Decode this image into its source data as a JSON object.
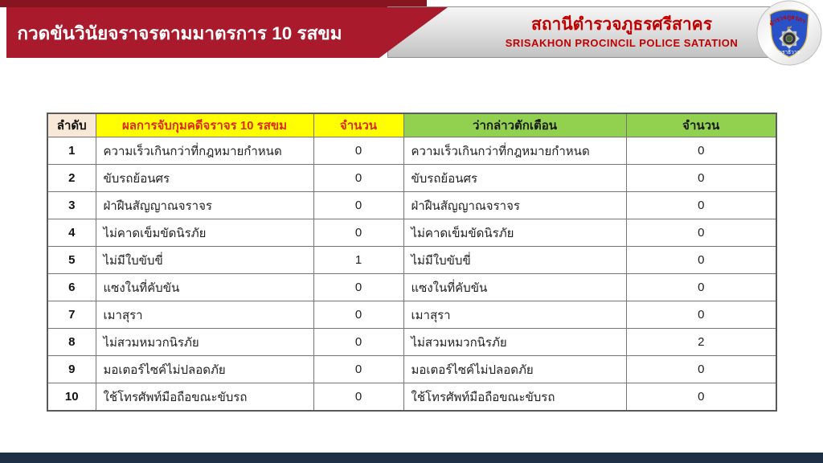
{
  "header": {
    "left_banner": {
      "title": "กวดขันวินัยจราจรตามมาตรการ 10 รสขม",
      "bg_color": "#A91A2D",
      "strip_color": "#87151F"
    },
    "right_banner": {
      "title_th": "สถานีตำรวจภูธรศรีสาคร",
      "subtitle_en": "SRISAKHON PROCINCIL POLICE SATATION",
      "text_color": "#C00000",
      "bg_color": "#D9D9D9"
    },
    "badge": {
      "region_text": "ตำรวจภูธรภาค",
      "region_number": "๙",
      "province_text": "นราธิวาส",
      "shield_color": "#2A52C8"
    }
  },
  "table": {
    "columns": [
      {
        "key": "no",
        "label": "ลำดับ",
        "bg": "#F8E8D8",
        "color": "#111111"
      },
      {
        "key": "arrest",
        "label": "ผลการจับกุมคดีจราจร 10 รสขม",
        "bg": "#FFFF00",
        "color": "#DC2A1E"
      },
      {
        "key": "arrest_count",
        "label": "จำนวน",
        "bg": "#FFFF00",
        "color": "#DC2A1E"
      },
      {
        "key": "warning",
        "label": "ว่ากล่าวตักเตือน",
        "bg": "#92D050",
        "color": "#1A1A1A"
      },
      {
        "key": "warning_count",
        "label": "จำนวน",
        "bg": "#92D050",
        "color": "#1A1A1A"
      }
    ],
    "rows": [
      {
        "no": "1",
        "arrest": "ความเร็วเกินกว่าที่กฎหมายกำหนด",
        "arrest_count": "0",
        "warning": "ความเร็วเกินกว่าที่กฎหมายกำหนด",
        "warning_count": "0"
      },
      {
        "no": "2",
        "arrest": "ขับรถย้อนศร",
        "arrest_count": "0",
        "warning": "ขับรถย้อนศร",
        "warning_count": "0"
      },
      {
        "no": "3",
        "arrest": "ฝ่าฝืนสัญญาณจราจร",
        "arrest_count": "0",
        "warning": "ฝ่าฝืนสัญญาณจราจร",
        "warning_count": "0"
      },
      {
        "no": "4",
        "arrest": "ไม่คาดเข็มขัดนิรภัย",
        "arrest_count": "0",
        "warning": "ไม่คาดเข็มขัดนิรภัย",
        "warning_count": "0"
      },
      {
        "no": "5",
        "arrest": "ไม่มีใบขับขี่",
        "arrest_count": "1",
        "warning": "ไม่มีใบขับขี่",
        "warning_count": "0"
      },
      {
        "no": "6",
        "arrest": "แซงในที่คับขัน",
        "arrest_count": "0",
        "warning": "แซงในที่คับขัน",
        "warning_count": "0"
      },
      {
        "no": "7",
        "arrest": "เมาสุรา",
        "arrest_count": "0",
        "warning": "เมาสุรา",
        "warning_count": "0"
      },
      {
        "no": "8",
        "arrest": "ไม่สวมหมวกนิรภัย",
        "arrest_count": "0",
        "warning": "ไม่สวมหมวกนิรภัย",
        "warning_count": "2"
      },
      {
        "no": "9",
        "arrest": "มอเตอร์ไซค์ไม่ปลอดภัย",
        "arrest_count": "0",
        "warning": "มอเตอร์ไซค์ไม่ปลอดภัย",
        "warning_count": "0"
      },
      {
        "no": "10",
        "arrest": "ใช้โทรศัพท์มือถือขณะขับรถ",
        "arrest_count": "0",
        "warning": "ใช้โทรศัพท์มือถือขณะขับรถ",
        "warning_count": "0"
      }
    ]
  },
  "footer": {
    "bar_color": "#1F3044"
  }
}
